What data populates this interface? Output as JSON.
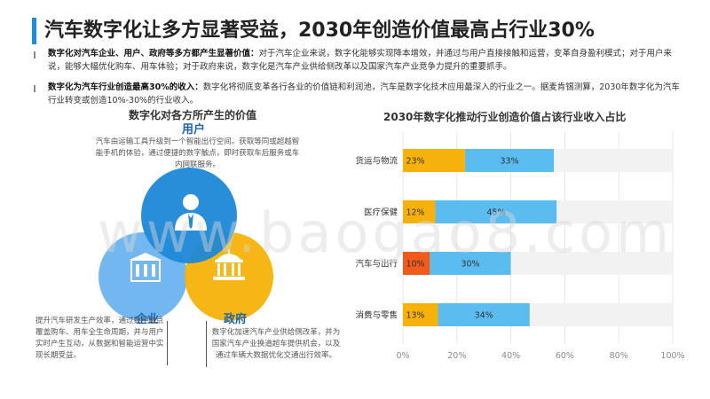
{
  "header": {
    "title": "汽车数字化让多方显著受益，2030年创造价值最高占行业30%"
  },
  "intro": {
    "p1_bold": "数字化对汽车企业、用户、政府等多方都产生显著价值：",
    "p1_text": "对于汽车企业来说，数字化能够实现降本增效，并通过与用户直接接触和运营，变革自身盈利模式；对于用户来说，能够大幅优化购车、用车体验；对于政府来说，数字化是汽车产业供给侧改革以及国家汽车产业竞争力提升的重要抓手。",
    "p2_bold": "数字化为汽车行业创造最高30%的收入：",
    "p2_text": "数字化将彻底变革各行各业的价值链和利润池，汽车是数字化技术应用最深入的行业之一。据麦肯锡测算，2030年数字化为汽车行业转变或创造10%-30%的行业收入。"
  },
  "left_panel": {
    "title": "数字化对各方所产生的价值",
    "user": {
      "label": "用户",
      "desc": "汽车由运输工具升级到一个智能出行空间。获取等同或超越智能手机的体验，通过便捷的数字触点，即时获取车后服务或车内网联服务。",
      "color": "#1e88d8",
      "icon": "person-icon"
    },
    "enterprise": {
      "label": "企业",
      "desc": "提升汽车研发生产效率，通过数字触点覆盖购车、用车全生命周期，并与用户实时产生互动，从数据和智能运营中实现长期受益。",
      "color": "#6ab3ef",
      "icon": "building-icon"
    },
    "government": {
      "label": "政府",
      "desc": "数字化加速汽车产业供给侧改革，并为国家汽车产业换道超车提供机会，以及通过车辆大数据优化交通出行效率。",
      "color": "#f6b20a",
      "icon": "government-icon"
    }
  },
  "chart_data": {
    "type": "bar",
    "stacked": true,
    "orientation": "horizontal",
    "title": "2030年数字化推动行业创造价值占该行业收入占比",
    "categories": [
      "货运与物流",
      "医疗保健",
      "汽车与出行",
      "消费与零售"
    ],
    "series": [
      {
        "name": "",
        "values": [
          23,
          12,
          10,
          13
        ],
        "colors": [
          "#f6b20a",
          "#f6b20a",
          "#f05a1a",
          "#f6b20a"
        ]
      },
      {
        "name": "",
        "values": [
          33,
          45,
          30,
          34
        ],
        "color": "#5bbcef"
      },
      {
        "name": "",
        "values": [
          44,
          43,
          60,
          53
        ],
        "color": "#f2f2f2"
      }
    ],
    "data_labels": [
      [
        "23%",
        "12%",
        "10%",
        "13%"
      ],
      [
        "33%",
        "45%",
        "30%",
        "34%"
      ]
    ],
    "xlim": [
      0,
      100
    ],
    "xticks": [
      "0%",
      "20%",
      "40%",
      "60%",
      "80%",
      "100%"
    ],
    "grid": true
  },
  "watermark": "www.baogao8.com"
}
